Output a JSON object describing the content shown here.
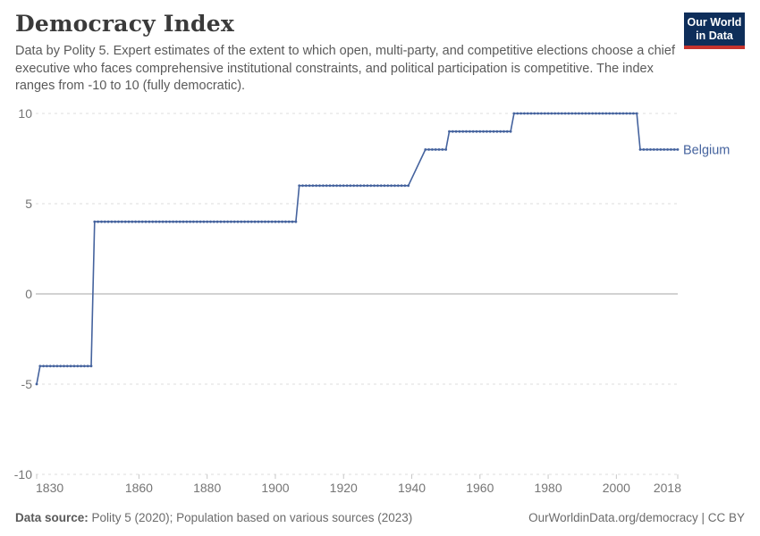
{
  "header": {
    "title": "Democracy Index",
    "subtitle": "Data by Polity 5. Expert estimates of the extent to which open, multi-party, and competitive elections choose a chief executive who faces comprehensive institutional constraints, and political participation is competitive. The index ranges from -10 to 10 (fully democratic)."
  },
  "logo": {
    "line1": "Our World",
    "line2": "in Data",
    "bg": "#0E2E5A",
    "accent": "#C5332D"
  },
  "colors": {
    "line": "#45639E",
    "grid": "#DDDDDD",
    "zero_line": "#A6A6A6",
    "tick_mark": "#C8C8C8",
    "axis_text": "#757575",
    "title_text": "#3A3A3A",
    "subtitle_text": "#5A5A5A",
    "footer_text": "#6B6B6B"
  },
  "footer": {
    "source_label": "Data source:",
    "source_text": " Polity 5 (2020); Population based on various sources (2023)",
    "attribution": "OurWorldinData.org/democracy | CC BY"
  },
  "chart_data": {
    "type": "line",
    "title": "Democracy Index",
    "xlabel": "",
    "ylabel": "",
    "x": {
      "min": 1830,
      "max": 2018,
      "ticks": [
        1830,
        1860,
        1880,
        1900,
        1920,
        1940,
        1960,
        1980,
        2000,
        2018
      ]
    },
    "y": {
      "min": -10,
      "max": 10,
      "ticks": [
        10,
        5,
        0,
        -5,
        -10
      ]
    },
    "grid": "horizontal dashed lines; zero line solid; markers at each yearly data point",
    "legend": "label at end of line",
    "interpolated_gaps": [
      [
        1939,
        1944
      ]
    ],
    "series": [
      {
        "name": "Belgium",
        "color": "#45639E",
        "segments": [
          {
            "from": 1830,
            "to": 1830,
            "value": -5
          },
          {
            "from": 1831,
            "to": 1846,
            "value": -4
          },
          {
            "from": 1847,
            "to": 1906,
            "value": 4
          },
          {
            "from": 1907,
            "to": 1939,
            "value": 6
          },
          {
            "from": 1944,
            "to": 1950,
            "value": 8
          },
          {
            "from": 1951,
            "to": 1969,
            "value": 9
          },
          {
            "from": 1970,
            "to": 2006,
            "value": 10
          },
          {
            "from": 2007,
            "to": 2018,
            "value": 8
          }
        ]
      }
    ]
  }
}
